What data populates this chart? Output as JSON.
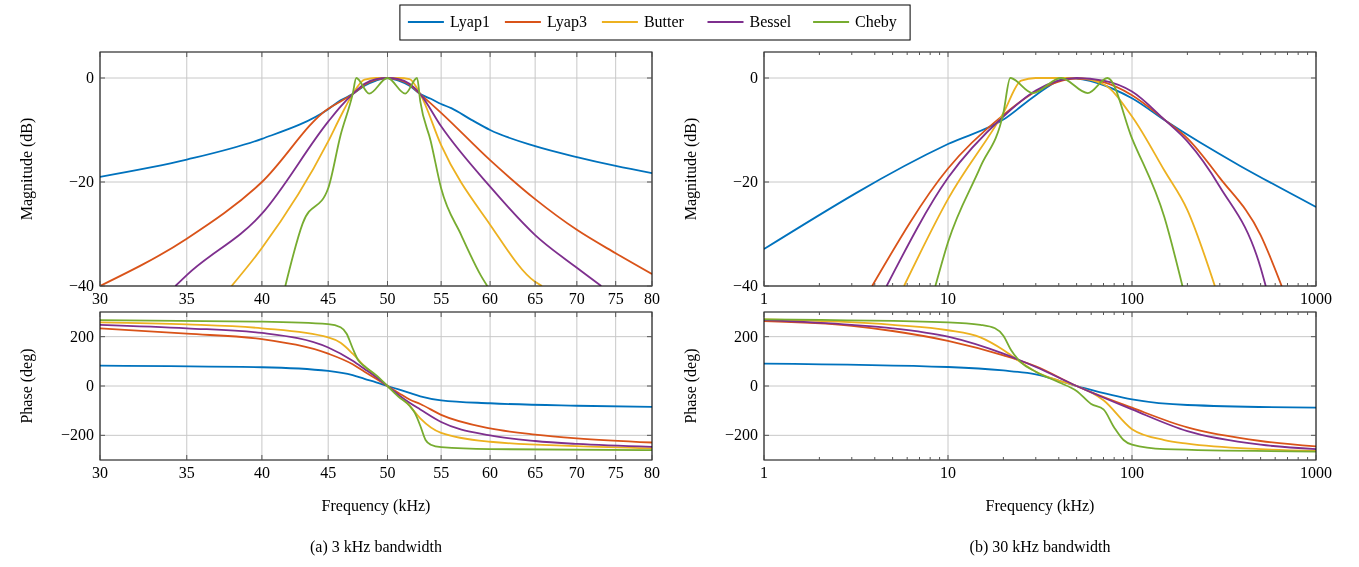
{
  "chart_data": [
    {
      "type": "line",
      "ylabel": "Magnitude (dB)",
      "log": "x",
      "grid": true,
      "legend": "top",
      "line_style": "solid",
      "marker": "none",
      "xlim": [
        30,
        80
      ],
      "xticks": [
        30,
        35,
        40,
        45,
        50,
        55,
        60,
        65,
        70,
        75,
        80
      ],
      "ylim": [
        -40,
        5
      ],
      "yticks": [
        -40,
        -20,
        0
      ],
      "series": [
        {
          "name": "Lyap1",
          "color": "#0072bd",
          "x": [
            30,
            35,
            40,
            45,
            46,
            47,
            48,
            49,
            50,
            51,
            52,
            53,
            54,
            55,
            56,
            58,
            60,
            65,
            70,
            75,
            80
          ],
          "values": [
            -19.0,
            -15.7,
            -11.7,
            -6.0,
            -4.3,
            -3.1,
            -1.5,
            -0.5,
            0,
            -0.5,
            -1.5,
            -3.1,
            -4.0,
            -5.0,
            -5.8,
            -8.0,
            -10.0,
            -13.1,
            -15.2,
            -16.9,
            -18.3
          ]
        },
        {
          "name": "Lyap3",
          "color": "#d95319",
          "x": [
            30,
            35,
            40,
            45,
            46,
            47,
            48,
            49,
            50,
            51,
            52,
            53,
            55,
            60,
            65,
            70,
            75,
            80
          ],
          "values": [
            -40,
            -30.9,
            -20,
            -5.9,
            -4.5,
            -3.1,
            -1.3,
            -0.3,
            0,
            -0.3,
            -1.3,
            -3.1,
            -6.7,
            -15.8,
            -23.3,
            -29.2,
            -33.7,
            -37.7
          ]
        },
        {
          "name": "Butter",
          "color": "#edb120",
          "x": [
            37.9,
            40,
            45,
            46,
            47,
            48,
            49,
            50,
            51,
            52,
            53,
            55,
            60,
            65,
            65.8
          ],
          "values": [
            -40,
            -32.7,
            -12.2,
            -7.4,
            -3.1,
            -0.3,
            0,
            0,
            0,
            -0.2,
            -3.1,
            -12.9,
            -28.2,
            -39.2,
            -40
          ]
        },
        {
          "name": "Bessel",
          "color": "#7e2f8e",
          "x": [
            34.3,
            35,
            40,
            45,
            46,
            47,
            48,
            49,
            50,
            51,
            52,
            53,
            55,
            60,
            65,
            70,
            73.1
          ],
          "values": [
            -40,
            -37.9,
            -26.1,
            -8.4,
            -5.5,
            -3.1,
            -1.1,
            -0.2,
            0,
            -0.2,
            -1.1,
            -3.1,
            -9.3,
            -20.9,
            -30.2,
            -36.5,
            -40
          ]
        },
        {
          "name": "Cheby",
          "color": "#77ac30",
          "x": [
            41.7,
            43,
            45,
            46,
            47,
            47.3,
            48.4,
            50,
            51.6,
            52.7,
            53,
            54,
            55,
            57,
            59,
            59.7
          ],
          "values": [
            -40,
            -28,
            -21.2,
            -11,
            -3.1,
            0,
            -3.0,
            0,
            -3.0,
            0,
            -4.5,
            -12.2,
            -21.2,
            -30.2,
            -37.9,
            -40
          ]
        }
      ]
    },
    {
      "type": "line",
      "ylabel": "Phase (deg)",
      "xlabel": "Frequency (kHz)",
      "log": "x",
      "grid": true,
      "line_style": "solid",
      "marker": "none",
      "xlim": [
        30,
        80
      ],
      "xticks": [
        30,
        35,
        40,
        45,
        50,
        55,
        60,
        65,
        70,
        75,
        80
      ],
      "ylim": [
        -300,
        300
      ],
      "yticks": [
        -200,
        0,
        200
      ],
      "annotations": [
        "(a) 3 kHz bandwidth"
      ],
      "series": [
        {
          "color": "#0072bd",
          "x": [
            30,
            40,
            45,
            47,
            48,
            49,
            50,
            51,
            52,
            53,
            55,
            60,
            70,
            80
          ],
          "values": [
            83,
            76,
            61,
            44,
            29,
            15,
            0,
            -14,
            -28,
            -42,
            -58,
            -70,
            -80,
            -85
          ]
        },
        {
          "color": "#d95319",
          "x": [
            30,
            35,
            40,
            45,
            47,
            48,
            49,
            50,
            51,
            52,
            53,
            55,
            60,
            65,
            70,
            80
          ],
          "values": [
            234,
            212,
            190,
            131,
            88,
            58,
            29,
            0,
            -28,
            -55,
            -73,
            -117,
            -172,
            -197,
            -212,
            -229
          ]
        },
        {
          "color": "#edb120",
          "x": [
            30,
            35,
            40,
            45,
            46,
            47,
            48,
            49,
            50,
            51,
            52,
            53,
            55,
            60,
            70,
            80
          ],
          "values": [
            258,
            250,
            234,
            197,
            175,
            131,
            80,
            39,
            0,
            -39,
            -80,
            -131,
            -190,
            -226,
            -244,
            -253
          ]
        },
        {
          "color": "#7e2f8e",
          "x": [
            30,
            35,
            40,
            45,
            47,
            48,
            49,
            50,
            51,
            52,
            53,
            55,
            60,
            65,
            70,
            80
          ],
          "values": [
            248,
            234,
            215,
            156,
            102,
            69,
            36,
            0,
            -36,
            -68,
            -95,
            -146,
            -200,
            -223,
            -235,
            -247
          ]
        },
        {
          "color": "#77ac30",
          "x": [
            30,
            40,
            45,
            46,
            46.5,
            47,
            47.5,
            48,
            49,
            50,
            51,
            52,
            52.5,
            53,
            53.5,
            54,
            55,
            60,
            80
          ],
          "values": [
            267,
            261,
            251,
            238,
            212,
            153,
            102,
            80,
            44,
            0,
            -44,
            -80,
            -110,
            -161,
            -219,
            -238,
            -248,
            -256,
            -260
          ]
        }
      ]
    },
    {
      "type": "line",
      "ylabel": "Magnitude (dB)",
      "log": "x",
      "grid": true,
      "line_style": "solid",
      "marker": "none",
      "xlim": [
        1,
        1000
      ],
      "xticks": [
        1,
        {
          "value": 2,
          "label": null
        },
        {
          "value": 3,
          "label": null
        },
        {
          "value": 4,
          "label": null
        },
        {
          "value": 5,
          "label": null
        },
        {
          "value": 6,
          "label": null
        },
        {
          "value": 7,
          "label": null
        },
        {
          "value": 8,
          "label": null
        },
        {
          "value": 9,
          "label": null
        },
        10,
        {
          "value": 20,
          "label": null
        },
        {
          "value": 30,
          "label": null
        },
        {
          "value": 40,
          "label": null
        },
        {
          "value": 50,
          "label": null
        },
        {
          "value": 60,
          "label": null
        },
        {
          "value": 70,
          "label": null
        },
        {
          "value": 80,
          "label": null
        },
        {
          "value": 90,
          "label": null
        },
        100,
        {
          "value": 200,
          "label": null
        },
        {
          "value": 300,
          "label": null
        },
        {
          "value": 400,
          "label": null
        },
        {
          "value": 500,
          "label": null
        },
        {
          "value": 600,
          "label": null
        },
        {
          "value": 700,
          "label": null
        },
        {
          "value": 800,
          "label": null
        },
        {
          "value": 900,
          "label": null
        },
        1000
      ],
      "ylim": [
        -40,
        5
      ],
      "yticks": [
        -40,
        -20,
        0
      ],
      "series": [
        {
          "color": "#0072bd",
          "x": [
            1,
            10,
            20,
            30,
            40,
            45,
            100,
            150,
            1000
          ],
          "values": [
            -32.9,
            -12.7,
            -8.0,
            -3.3,
            -0.5,
            0,
            -3.9,
            -8.1,
            -24.8
          ]
        },
        {
          "color": "#d95319",
          "x": [
            3.87,
            10,
            20,
            30,
            50,
            70,
            100,
            150,
            200,
            300,
            500,
            651
          ],
          "values": [
            -40,
            -17.4,
            -7.1,
            -2.6,
            -0.1,
            -0.8,
            -3.3,
            -8.0,
            -11.6,
            -19.2,
            -30.2,
            -40
          ]
        },
        {
          "color": "#edb120",
          "x": [
            5.77,
            10,
            20,
            25,
            30,
            50,
            70,
            100,
            150,
            200,
            282
          ],
          "values": [
            -40,
            -23.3,
            -6.7,
            -0.5,
            0,
            0,
            -1.2,
            -7.4,
            -17.8,
            -25.4,
            -40
          ]
        },
        {
          "color": "#7e2f8e",
          "x": [
            4.64,
            10,
            20,
            30,
            50,
            70,
            100,
            150,
            200,
            300,
            500,
            533
          ],
          "values": [
            -40,
            -19.2,
            -7.4,
            -2.4,
            0,
            -0.5,
            -2.6,
            -8.0,
            -12.2,
            -20.9,
            -36.5,
            -40
          ]
        },
        {
          "color": "#77ac30",
          "x": [
            8.54,
            10,
            15,
            20,
            21.8,
            28.9,
            41.1,
            57.5,
            73.6,
            100,
            150,
            188
          ],
          "values": [
            -40,
            -31.6,
            -17.1,
            -6.7,
            0,
            -2.9,
            0,
            -2.9,
            0,
            -11.6,
            -26.8,
            -40
          ]
        }
      ]
    },
    {
      "type": "line",
      "ylabel": "Phase (deg)",
      "xlabel": "Frequency (kHz)",
      "log": "x",
      "grid": true,
      "line_style": "solid",
      "marker": "none",
      "xlim": [
        1,
        1000
      ],
      "xticks": [
        1,
        {
          "value": 2,
          "label": null
        },
        {
          "value": 3,
          "label": null
        },
        {
          "value": 4,
          "label": null
        },
        {
          "value": 5,
          "label": null
        },
        {
          "value": 6,
          "label": null
        },
        {
          "value": 7,
          "label": null
        },
        {
          "value": 8,
          "label": null
        },
        {
          "value": 9,
          "label": null
        },
        10,
        {
          "value": 20,
          "label": null
        },
        {
          "value": 30,
          "label": null
        },
        {
          "value": 40,
          "label": null
        },
        {
          "value": 50,
          "label": null
        },
        {
          "value": 60,
          "label": null
        },
        {
          "value": 70,
          "label": null
        },
        {
          "value": 80,
          "label": null
        },
        {
          "value": 90,
          "label": null
        },
        100,
        {
          "value": 200,
          "label": null
        },
        {
          "value": 300,
          "label": null
        },
        {
          "value": 400,
          "label": null
        },
        {
          "value": 500,
          "label": null
        },
        {
          "value": 600,
          "label": null
        },
        {
          "value": 700,
          "label": null
        },
        {
          "value": 800,
          "label": null
        },
        {
          "value": 900,
          "label": null
        },
        1000
      ],
      "ylim": [
        -300,
        300
      ],
      "yticks": [
        -200,
        0,
        200
      ],
      "annotations": [
        "(b) 30 kHz bandwidth"
      ],
      "series": [
        {
          "color": "#0072bd",
          "x": [
            1,
            10,
            20,
            30,
            50,
            100,
            200,
            1000
          ],
          "values": [
            91,
            77,
            63,
            47,
            0,
            -54,
            -77,
            -88
          ]
        },
        {
          "color": "#d95319",
          "x": [
            1,
            3,
            5,
            10,
            20,
            30,
            50,
            100,
            200,
            500,
            1000
          ],
          "values": [
            263,
            244,
            223,
            183,
            124,
            80,
            0,
            -88,
            -168,
            -223,
            -245
          ]
        },
        {
          "color": "#edb120",
          "x": [
            1,
            5,
            10,
            15,
            20,
            25,
            30,
            40,
            50,
            70,
            100,
            150,
            200,
            500,
            1000
          ],
          "values": [
            270,
            248,
            226,
            197,
            146,
            95,
            58,
            22,
            0,
            -58,
            -175,
            -219,
            -234,
            -256,
            -263
          ]
        },
        {
          "color": "#7e2f8e",
          "x": [
            1,
            3,
            5,
            10,
            20,
            30,
            50,
            100,
            200,
            500,
            1000
          ],
          "values": [
            267,
            248,
            234,
            200,
            131,
            77,
            0,
            -95,
            -183,
            -238,
            -256
          ]
        },
        {
          "color": "#77ac30",
          "x": [
            1,
            10,
            15,
            18,
            20,
            22,
            25,
            30,
            40,
            50,
            60,
            70,
            80,
            90,
            100,
            150,
            1000
          ],
          "values": [
            270,
            258,
            248,
            234,
            204,
            146,
            95,
            58,
            15,
            -20,
            -73,
            -95,
            -168,
            -219,
            -238,
            -256,
            -266
          ]
        }
      ]
    }
  ]
}
